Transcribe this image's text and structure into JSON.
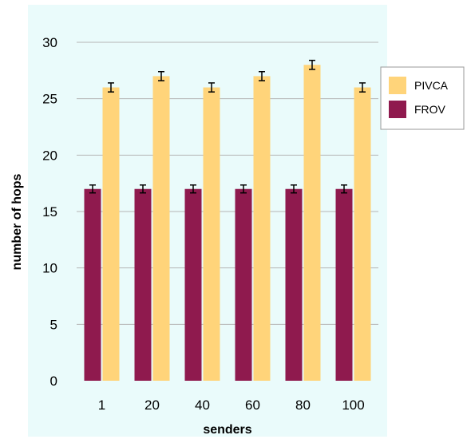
{
  "chart_data": {
    "type": "bar",
    "title": "",
    "xlabel": "senders",
    "ylabel": "number of hops",
    "categories": [
      "1",
      "20",
      "40",
      "60",
      "80",
      "100"
    ],
    "ylim": [
      0,
      30
    ],
    "yticks": [
      0,
      5,
      10,
      15,
      20,
      25,
      30
    ],
    "grid": true,
    "legend_position": "right",
    "series": [
      {
        "name": "FROV",
        "color": "#8f1a4e",
        "values": [
          17,
          17,
          17,
          17,
          17,
          17
        ],
        "error": [
          0.35,
          0.35,
          0.35,
          0.35,
          0.35,
          0.35
        ]
      },
      {
        "name": "PIVCA",
        "color": "#ffd47a",
        "values": [
          26,
          27,
          26,
          27,
          28,
          26
        ],
        "error": [
          0.4,
          0.4,
          0.4,
          0.4,
          0.4,
          0.4
        ]
      }
    ],
    "legend_order": [
      "PIVCA",
      "FROV"
    ],
    "colors": {
      "plot_background": "#eafbfb",
      "gridline": "#b5b5b5",
      "legend_background": "#ffffff",
      "error_bar": "#000000"
    }
  }
}
